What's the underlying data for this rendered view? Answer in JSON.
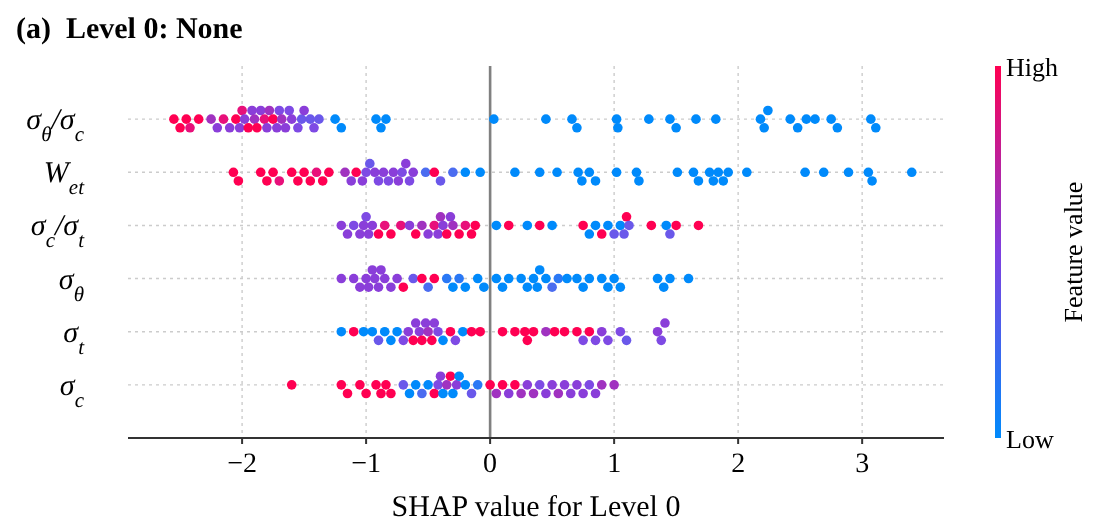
{
  "chart_data": {
    "type": "scatter",
    "orientation": "horizontal",
    "title": "(a)  Level 0: None",
    "xlabel": "SHAP value for Level 0",
    "clabel": "Feature value",
    "cticks": [
      {
        "label": "Low"
      },
      {
        "label": "High"
      }
    ],
    "xlim": [
      -2.92,
      3.66
    ],
    "xticks": [
      {
        "value": -2,
        "label": "−2"
      },
      {
        "value": -1,
        "label": "−1"
      },
      0,
      1,
      2,
      3
    ],
    "grid": true,
    "marker": "circle",
    "ref_lines": [
      {
        "axis": "x",
        "value": 0,
        "color": "#808080"
      }
    ],
    "categories": [
      "σ$_{θ}$/σ$_{c}$",
      "W$_{et}$",
      "σ$_{c}$/σ$_{t}$",
      "σ$_{θ}$",
      "σ$_{t}$",
      "σ$_{c}$"
    ],
    "series": [
      {
        "values": [
          -2.55,
          -2.07,
          -1.2,
          -1.2,
          -1.2,
          -1.6
        ],
        "colors": [
          "#ff0052",
          "#ff0052",
          "#8a3ed9",
          "#8a3ed9",
          "#008afb",
          "#ff0052"
        ]
      },
      {
        "values": [
          -2.5,
          -2.03,
          -1.15,
          -1.1,
          -1.1,
          -1.2
        ],
        "colors": [
          "#ff0052",
          "#ff0052",
          "#8a3ed9",
          "#8a3ed9",
          "#ff0052",
          "#ff0052"
        ]
      },
      {
        "values": [
          -2.45,
          -1.85,
          -1.1,
          -1.05,
          -1.02,
          -1.15
        ],
        "colors": [
          "#ff0052",
          "#ff0052",
          "#7e4ae4",
          "#8a3ed9",
          "#008afb",
          "#ff0052"
        ]
      },
      {
        "values": [
          -2.42,
          -1.8,
          -1.05,
          -1.0,
          -0.95,
          -1.05
        ],
        "colors": [
          "#e8107a",
          "#ff0052",
          "#8a3ed9",
          "#8a3ed9",
          "#008afb",
          "#ff0052"
        ]
      },
      {
        "values": [
          -2.35,
          -1.75,
          -1.02,
          -0.98,
          -0.9,
          -1.0
        ],
        "colors": [
          "#ff0052",
          "#ff0052",
          "#8a3ed9",
          "#8a3ed9",
          "#6a58ea",
          "#ff0052"
        ]
      },
      {
        "values": [
          -2.25,
          -1.7,
          -1.0,
          -0.95,
          -0.85,
          -0.92
        ],
        "colors": [
          "#a032c0",
          "#e8107a",
          "#7e4ae4",
          "#8a3ed9",
          "#008afb",
          "#ff0052"
        ]
      },
      {
        "values": [
          -2.2,
          -1.6,
          -0.98,
          -0.93,
          -0.8,
          -0.88
        ],
        "colors": [
          "#8a3ed9",
          "#ff0052",
          "#8a3ed9",
          "#8a3ed9",
          "#008afb",
          "#ff0052"
        ]
      },
      {
        "values": [
          -2.15,
          -1.55,
          -0.95,
          -0.9,
          -0.75,
          -0.84
        ],
        "colors": [
          "#e8107a",
          "#ff0052",
          "#8a3ed9",
          "#8a3ed9",
          "#008afb",
          "#ff0052"
        ]
      },
      {
        "values": [
          -2.1,
          -1.5,
          -0.9,
          -0.88,
          -0.7,
          -0.8
        ],
        "colors": [
          "#8a3ed9",
          "#ff0052",
          "#ff0052",
          "#8a3ed9",
          "#7e4ae4",
          "#ff0052"
        ]
      },
      {
        "values": [
          -2.05,
          -1.45,
          -0.85,
          -0.85,
          -0.66,
          -0.7
        ],
        "colors": [
          "#ff0052",
          "#ff0052",
          "#e8107a",
          "#8a3ed9",
          "#8a3ed9",
          "#6a58ea"
        ]
      },
      {
        "values": [
          -2.02,
          -1.4,
          -0.8,
          -0.8,
          -0.62,
          -0.65
        ],
        "colors": [
          "#8a3ed9",
          "#e8107a",
          "#ff0052",
          "#8a3ed9",
          "#ff0052",
          "#008afb"
        ]
      },
      {
        "values": [
          -2.0,
          -1.35,
          -0.72,
          -0.75,
          -0.6,
          -0.6
        ],
        "colors": [
          "#e8107a",
          "#ff0052",
          "#e8107a",
          "#8a3ed9",
          "#8a3ed9",
          "#008afb"
        ]
      },
      {
        "values": [
          -1.98,
          -1.3,
          -0.65,
          -0.7,
          -0.57,
          -0.55
        ],
        "colors": [
          "#8a3ed9",
          "#ff0052",
          "#8a3ed9",
          "#ff0052",
          "#8a3ed9",
          "#4b6cf0"
        ]
      },
      {
        "values": [
          -1.95,
          -1.17,
          -0.6,
          -0.62,
          -0.55,
          -0.5
        ],
        "colors": [
          "#ff0052",
          "#a032c0",
          "#ff0052",
          "#6a58ea",
          "#ff0052",
          "#008afb"
        ]
      },
      {
        "values": [
          -1.92,
          -1.12,
          -0.55,
          -0.55,
          -0.52,
          -0.45
        ],
        "colors": [
          "#8a3ed9",
          "#8a3ed9",
          "#a032c0",
          "#ff0052",
          "#8a3ed9",
          "#ff0052"
        ]
      },
      {
        "values": [
          -1.9,
          -1.08,
          -0.5,
          -0.5,
          -0.5,
          -0.42
        ],
        "colors": [
          "#a032c0",
          "#ff0052",
          "#8a3ed9",
          "#4b6cf0",
          "#a032c0",
          "#7e4ae4"
        ]
      },
      {
        "values": [
          -1.88,
          -1.03,
          -0.45,
          -0.45,
          -0.47,
          -0.4
        ],
        "colors": [
          "#ff0052",
          "#8a3ed9",
          "#e8107a",
          "#ff0052",
          "#ff0052",
          "#8a3ed9"
        ]
      },
      {
        "values": [
          -1.85,
          -1.0,
          -0.42,
          -0.35,
          -0.45,
          -0.38
        ],
        "colors": [
          "#8a3ed9",
          "#7e4ae4",
          "#8a3ed9",
          "#2a78f5",
          "#8a3ed9",
          "#008afb"
        ]
      },
      {
        "values": [
          -1.82,
          -0.97,
          -0.4,
          -0.3,
          -0.42,
          -0.35
        ],
        "colors": [
          "#e8107a",
          "#6a58ea",
          "#a032c0",
          "#008afb",
          "#7e4ae4",
          "#a032c0"
        ]
      },
      {
        "values": [
          -1.8,
          -0.93,
          -0.38,
          -0.25,
          -0.38,
          -0.32
        ],
        "colors": [
          "#8a3ed9",
          "#8a3ed9",
          "#8a3ed9",
          "#2a78f5",
          "#008afb",
          "#ff0052"
        ]
      },
      {
        "values": [
          -1.78,
          -0.9,
          -0.35,
          -0.2,
          -0.32,
          -0.3
        ],
        "colors": [
          "#a032c0",
          "#7e4ae4",
          "#ff0052",
          "#008afb",
          "#ff0052",
          "#008afb"
        ]
      },
      {
        "values": [
          -1.75,
          -0.86,
          -0.32,
          -0.1,
          -0.28,
          -0.27
        ],
        "colors": [
          "#ff0052",
          "#8a3ed9",
          "#8a3ed9",
          "#008afb",
          "#7e4ae4",
          "#8a3ed9"
        ]
      },
      {
        "values": [
          -1.72,
          -0.82,
          -0.3,
          -0.05,
          -0.22,
          -0.25
        ],
        "colors": [
          "#8a3ed9",
          "#7e4ae4",
          "#a032c0",
          "#008afb",
          "#008afb",
          "#008afb"
        ]
      },
      {
        "values": [
          -1.7,
          -0.78,
          -0.25,
          0.05,
          -0.15,
          -0.2
        ],
        "colors": [
          "#7e4ae4",
          "#8a3ed9",
          "#ff0052",
          "#008afb",
          "#ff0052",
          "#008afb"
        ]
      },
      {
        "values": [
          -1.68,
          -0.74,
          -0.2,
          0.1,
          -0.08,
          -0.15
        ],
        "colors": [
          "#a032c0",
          "#8a3ed9",
          "#e8107a",
          "#008afb",
          "#ff0052",
          "#6a58ea"
        ]
      },
      {
        "values": [
          -1.65,
          -0.71,
          -0.15,
          0.15,
          0.1,
          -0.1
        ],
        "colors": [
          "#8a3ed9",
          "#7e4ae4",
          "#ff0052",
          "#008afb",
          "#ff0052",
          "#2a78f5"
        ]
      },
      {
        "values": [
          -1.62,
          -0.68,
          -0.12,
          0.25,
          0.2,
          0.0
        ],
        "colors": [
          "#7e4ae4",
          "#8a3ed9",
          "#ff0052",
          "#008afb",
          "#ff0052",
          "#ff0052"
        ]
      },
      {
        "values": [
          -1.6,
          -0.65,
          0.05,
          0.3,
          0.28,
          0.05
        ],
        "colors": [
          "#8a3ed9",
          "#7e4ae4",
          "#008afb",
          "#008afb",
          "#ff0052",
          "#a032c0"
        ]
      },
      {
        "values": [
          -1.55,
          -0.62,
          0.15,
          0.35,
          0.3,
          0.1
        ],
        "colors": [
          "#7e4ae4",
          "#8a3ed9",
          "#ff0052",
          "#008afb",
          "#ff0052",
          "#ff0052"
        ]
      },
      {
        "values": [
          -1.52,
          -0.52,
          0.3,
          0.38,
          0.35,
          0.15
        ],
        "colors": [
          "#6a58ea",
          "#4b6cf0",
          "#008afb",
          "#008afb",
          "#ff0052",
          "#8a3ed9"
        ]
      },
      {
        "values": [
          -1.5,
          -0.45,
          0.4,
          0.4,
          0.45,
          0.2
        ],
        "colors": [
          "#8a3ed9",
          "#ff0052",
          "#ff0052",
          "#008afb",
          "#a032c0",
          "#ff0052"
        ]
      },
      {
        "values": [
          -1.45,
          -0.4,
          0.5,
          0.45,
          0.52,
          0.25
        ],
        "colors": [
          "#6a58ea",
          "#6a58ea",
          "#008afb",
          "#008afb",
          "#ff0052",
          "#a032c0"
        ]
      },
      {
        "values": [
          -1.42,
          -0.3,
          0.75,
          0.5,
          0.6,
          0.3
        ],
        "colors": [
          "#7e4ae4",
          "#4b6cf0",
          "#ff0052",
          "#4b6cf0",
          "#ff0052",
          "#8a3ed9"
        ]
      },
      {
        "values": [
          -1.38,
          -0.2,
          0.8,
          0.55,
          0.7,
          0.35
        ],
        "colors": [
          "#6a58ea",
          "#008afb",
          "#008afb",
          "#2a78f5",
          "#ff0052",
          "#a032c0"
        ]
      },
      {
        "values": [
          -1.25,
          -0.08,
          0.85,
          0.62,
          0.75,
          0.4
        ],
        "colors": [
          "#008afb",
          "#008afb",
          "#008afb",
          "#008afb",
          "#7e4ae4",
          "#7e4ae4"
        ]
      },
      {
        "values": [
          -1.2,
          0.2,
          0.9,
          0.7,
          0.8,
          0.45
        ],
        "colors": [
          "#008afb",
          "#008afb",
          "#ff0052",
          "#008afb",
          "#ff0052",
          "#8a3ed9"
        ]
      },
      {
        "values": [
          -0.92,
          0.4,
          0.95,
          0.75,
          0.85,
          0.5
        ],
        "colors": [
          "#008afb",
          "#008afb",
          "#008afb",
          "#008afb",
          "#7e4ae4",
          "#8a3ed9"
        ]
      },
      {
        "values": [
          -0.88,
          0.54,
          1.0,
          0.8,
          0.9,
          0.55
        ],
        "colors": [
          "#008afb",
          "#008afb",
          "#6a58ea",
          "#008afb",
          "#8a3ed9",
          "#a032c0"
        ]
      },
      {
        "values": [
          -0.84,
          0.71,
          1.05,
          0.9,
          0.95,
          0.6
        ],
        "colors": [
          "#008afb",
          "#008afb",
          "#008afb",
          "#008afb",
          "#7e4ae4",
          "#8a3ed9"
        ]
      },
      {
        "values": [
          0.03,
          0.74,
          1.08,
          0.95,
          1.05,
          0.65
        ],
        "colors": [
          "#008afb",
          "#008afb",
          "#6a58ea",
          "#008afb",
          "#7e4ae4",
          "#8a3ed9"
        ]
      },
      {
        "values": [
          0.45,
          0.8,
          1.1,
          1.0,
          1.1,
          0.7
        ],
        "colors": [
          "#008afb",
          "#008afb",
          "#ff0052",
          "#008afb",
          "#6a58ea",
          "#8a3ed9"
        ]
      },
      {
        "values": [
          0.66,
          0.85,
          1.12,
          1.05,
          1.35,
          0.75
        ],
        "colors": [
          "#008afb",
          "#008afb",
          "#6a58ea",
          "#008afb",
          "#8a3ed9",
          "#8a3ed9"
        ]
      },
      {
        "values": [
          0.7,
          1.02,
          1.3,
          1.35,
          1.38,
          0.8
        ],
        "colors": [
          "#008afb",
          "#008afb",
          "#ff0052",
          "#008afb",
          "#7e4ae4",
          "#7e4ae4"
        ]
      },
      {
        "values": [
          1.02,
          1.18,
          1.42,
          1.4,
          1.41,
          0.85
        ],
        "colors": [
          "#008afb",
          "#008afb",
          "#008afb",
          "#008afb",
          "#8a3ed9",
          "#8a3ed9"
        ]
      },
      {
        "values": [
          1.03,
          1.2,
          1.45,
          1.45,
          null,
          0.9
        ],
        "colors": [
          "#008afb",
          "#008afb",
          "#6a58ea",
          "#008afb",
          null,
          "#a032c0"
        ]
      },
      {
        "values": [
          1.28,
          1.51,
          1.5,
          1.6,
          null,
          1.0
        ],
        "colors": [
          "#008afb",
          "#008afb",
          "#ff0052",
          "#008afb",
          null,
          "#a032c0"
        ]
      },
      {
        "values": [
          1.45,
          1.64,
          1.68,
          null,
          null,
          null
        ],
        "colors": [
          "#008afb",
          "#008afb",
          "#ff0052",
          null,
          null,
          null
        ]
      },
      {
        "values": [
          1.5,
          1.68,
          null,
          null,
          null,
          null
        ],
        "color": "#008afb"
      },
      {
        "values": [
          1.66,
          1.77,
          null,
          null,
          null,
          null
        ],
        "color": "#008afb"
      },
      {
        "values": [
          1.82,
          1.8,
          null,
          null,
          null,
          null
        ],
        "color": "#008afb"
      },
      {
        "values": [
          2.18,
          1.84,
          null,
          null,
          null,
          null
        ],
        "color": "#008afb"
      },
      {
        "values": [
          2.21,
          1.88,
          null,
          null,
          null,
          null
        ],
        "color": "#008afb"
      },
      {
        "values": [
          2.24,
          1.92,
          null,
          null,
          null,
          null
        ],
        "color": "#008afb"
      },
      {
        "values": [
          2.42,
          2.07,
          null,
          null,
          null,
          null
        ],
        "color": "#008afb"
      },
      {
        "values": [
          2.48,
          2.54,
          null,
          null,
          null,
          null
        ],
        "color": "#008afb"
      },
      {
        "values": [
          2.55,
          2.69,
          null,
          null,
          null,
          null
        ],
        "color": "#008afb"
      },
      {
        "values": [
          2.62,
          2.89,
          null,
          null,
          null,
          null
        ],
        "color": "#008afb"
      },
      {
        "values": [
          2.75,
          3.05,
          null,
          null,
          null,
          null
        ],
        "color": "#008afb"
      },
      {
        "values": [
          2.8,
          3.08,
          null,
          null,
          null,
          null
        ],
        "color": "#008afb"
      },
      {
        "values": [
          3.07,
          3.4,
          null,
          null,
          null,
          null
        ],
        "color": "#008afb"
      },
      {
        "values": [
          3.11,
          null,
          null,
          null,
          null,
          null
        ],
        "color": "#008afb"
      }
    ]
  }
}
